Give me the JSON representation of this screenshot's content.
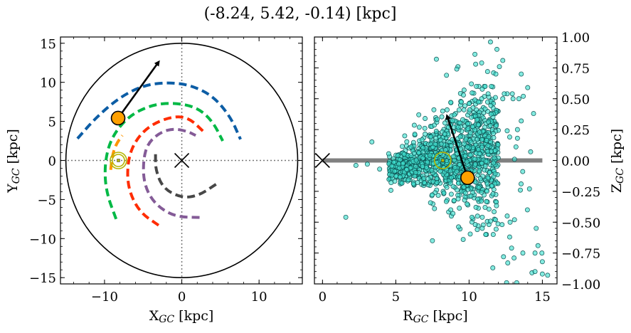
{
  "title": "(-8.24, 5.42, -0.14) [kpc]",
  "colors": {
    "orbit_marker": "#ffa000",
    "sun_marker": "#b5b500",
    "scatter_fill": "#40e0d0",
    "scatter_edge": "#0b4f4f",
    "galactic_plane": "#808080"
  },
  "chart_data": [
    {
      "type": "line",
      "panel": "left",
      "xlabel": "X",
      "xlabel_sub": "GC",
      "xlabel_unit": " [kpc]",
      "ylabel": "Y",
      "ylabel_sub": "GC",
      "ylabel_unit": " [kpc]",
      "xlim": [
        -15.7,
        15.6
      ],
      "ylim": [
        -15.8,
        15.8
      ],
      "xticks": [
        -10,
        0,
        10
      ],
      "xtick_labels": [
        "−10",
        "0",
        "10"
      ],
      "yticks": [
        -15,
        -10,
        -5,
        0,
        5,
        10,
        15
      ],
      "ytick_labels": [
        "−15",
        "−10",
        "−5",
        "0",
        "5",
        "10",
        "15"
      ],
      "grid": false,
      "boundary_circle_radius": 15,
      "crosshair": {
        "x": 0,
        "y": 0,
        "style": "dotted"
      },
      "galactic_center": {
        "x": 0,
        "y": 0,
        "marker": "x"
      },
      "sun": {
        "x": -8.2,
        "y": 0
      },
      "object": {
        "x": -8.24,
        "y": 5.42
      },
      "velocity_arrow": {
        "from": [
          -8.24,
          5.42
        ],
        "to": [
          -3.0,
          12.6
        ]
      },
      "series": [
        {
          "color": "#0c5da5",
          "points": [
            [
              -13.5,
              2.8
            ],
            [
              -11,
              5.6
            ],
            [
              -8,
              8.1
            ],
            [
              -5,
              9.6
            ],
            [
              -2,
              10.0
            ],
            [
              1,
              9.7
            ],
            [
              4,
              8.3
            ],
            [
              6.3,
              5.6
            ],
            [
              7.6,
              2.7
            ]
          ]
        },
        {
          "color": "#00b945",
          "points": [
            [
              -8.5,
              -7.5
            ],
            [
              -9.8,
              -4
            ],
            [
              -10,
              -0.5
            ],
            [
              -9.2,
              2.8
            ],
            [
              -7,
              5.6
            ],
            [
              -4,
              7.1
            ],
            [
              -1,
              7.4
            ],
            [
              2,
              6.8
            ],
            [
              4,
              5
            ],
            [
              5.3,
              2.5
            ]
          ]
        },
        {
          "color": "#ff9500",
          "points": [
            [
              -9.2,
              -1.2
            ],
            [
              -9,
              0.6
            ],
            [
              -8.5,
              2.1
            ],
            [
              -7.7,
              3.2
            ]
          ]
        },
        {
          "color": "#ff2c00",
          "points": [
            [
              -3,
              -8.3
            ],
            [
              -5.5,
              -6.6
            ],
            [
              -7,
              -3.5
            ],
            [
              -7,
              0
            ],
            [
              -6,
              2.6
            ],
            [
              -4,
              4.6
            ],
            [
              -1,
              5.7
            ],
            [
              1,
              5.4
            ],
            [
              2.8,
              3.7
            ]
          ]
        },
        {
          "color": "#845b97",
          "points": [
            [
              2.3,
              -7.3
            ],
            [
              -1,
              -7.2
            ],
            [
              -3.6,
              -5.5
            ],
            [
              -4.9,
              -3
            ],
            [
              -5,
              0
            ],
            [
              -4.4,
              2.2
            ],
            [
              -2.8,
              3.6
            ],
            [
              -1,
              4.1
            ],
            [
              0.8,
              3.7
            ],
            [
              1.8,
              3.2
            ]
          ]
        },
        {
          "color": "#474747",
          "points": [
            [
              -3.4,
              0.8
            ],
            [
              -3.4,
              -1.2
            ],
            [
              -2.4,
              -3.6
            ],
            [
              0,
              -4.8
            ],
            [
              2.2,
              -4.5
            ],
            [
              4.5,
              -3
            ]
          ]
        }
      ]
    },
    {
      "type": "scatter",
      "panel": "right",
      "xlabel": "R",
      "xlabel_sub": "GC",
      "xlabel_unit": " [kpc]",
      "ylabel": "Z",
      "ylabel_sub": "GC",
      "ylabel_unit": " [kpc]",
      "ylabel_position": "right",
      "xlim": [
        -0.55,
        16.0
      ],
      "ylim": [
        -1.0,
        1.0
      ],
      "xticks": [
        0,
        5,
        10,
        15
      ],
      "xtick_labels": [
        "0",
        "5",
        "10",
        "15"
      ],
      "yticks": [
        -1.0,
        -0.75,
        -0.5,
        -0.25,
        0,
        0.25,
        0.5,
        0.75,
        1.0
      ],
      "ytick_labels": [
        "−1.00",
        "−0.75",
        "−0.50",
        "−0.25",
        "0.00",
        "0.25",
        "0.50",
        "0.75",
        "1.00"
      ],
      "grid": false,
      "galactic_plane": {
        "from": 0,
        "to": 15,
        "z": 0
      },
      "galactic_center": {
        "x": 0,
        "y": 0,
        "marker": "x"
      },
      "sun": {
        "x": 8.2,
        "y": 0
      },
      "object": {
        "x": 9.9,
        "y": -0.14
      },
      "velocity_arrow": {
        "from": [
          9.9,
          -0.14
        ],
        "to": [
          8.5,
          0.36
        ]
      },
      "core_cloud": {
        "r_range": [
          4.5,
          12
        ],
        "z_spread_grows_with_r": true
      },
      "points": [
        [
          11.46,
          0.96
        ],
        [
          11.9,
          0.9
        ],
        [
          10.4,
          0.86
        ],
        [
          7.77,
          0.82
        ],
        [
          12.3,
          0.81
        ],
        [
          10.45,
          0.78
        ],
        [
          10.86,
          0.79
        ],
        [
          9.24,
          0.76
        ],
        [
          9.16,
          0.74
        ],
        [
          8.46,
          0.69
        ],
        [
          13.56,
          0.7
        ],
        [
          11.26,
          0.72
        ],
        [
          11.67,
          0.71
        ],
        [
          11.83,
          0.7
        ],
        [
          12.07,
          0.76
        ],
        [
          10.16,
          0.62
        ],
        [
          10.5,
          0.6
        ],
        [
          14.0,
          0.59
        ],
        [
          9.66,
          0.57
        ],
        [
          14.4,
          0.38
        ],
        [
          14.2,
          0.07
        ],
        [
          3.37,
          0.15
        ],
        [
          2.28,
          -0.04
        ],
        [
          3.06,
          -0.03
        ],
        [
          3.9,
          -0.07
        ],
        [
          1.59,
          -0.46
        ],
        [
          4.68,
          -0.18
        ],
        [
          7.64,
          -0.39
        ],
        [
          7.5,
          -0.65
        ],
        [
          9.6,
          -0.64
        ],
        [
          8.75,
          -0.4
        ],
        [
          8.9,
          -0.43
        ],
        [
          11.62,
          -0.87
        ],
        [
          11.8,
          -0.48
        ],
        [
          12.25,
          -0.52
        ],
        [
          12.6,
          -0.45
        ],
        [
          13.1,
          -0.48
        ],
        [
          12.8,
          -0.5
        ],
        [
          12.77,
          -0.62
        ],
        [
          12.9,
          -0.71
        ],
        [
          12.35,
          -0.78
        ],
        [
          12.64,
          -0.83
        ],
        [
          13.07,
          -0.79
        ],
        [
          13.67,
          -0.75
        ],
        [
          14.58,
          -0.55
        ],
        [
          14.7,
          -0.69
        ],
        [
          14.5,
          -0.75
        ],
        [
          14.97,
          -0.75
        ],
        [
          15.0,
          -0.82
        ],
        [
          14.29,
          -0.91
        ],
        [
          14.5,
          -0.9
        ],
        [
          15.0,
          -0.92
        ],
        [
          15.36,
          -0.93
        ],
        [
          12.56,
          -0.99
        ],
        [
          13.25,
          -0.99
        ],
        [
          13.98,
          -0.4
        ],
        [
          14.12,
          -0.23
        ],
        [
          13.66,
          -0.09
        ],
        [
          13.55,
          -0.19
        ],
        [
          13.5,
          -0.24
        ],
        [
          10.9,
          -0.46
        ],
        [
          10.9,
          -0.55
        ],
        [
          10.56,
          -0.56
        ],
        [
          10.2,
          -0.46
        ],
        [
          8.75,
          0.47
        ],
        [
          6.57,
          0.37
        ],
        [
          7.0,
          0.34
        ],
        [
          7.6,
          0.41
        ],
        [
          8.2,
          0.4
        ],
        [
          8.5,
          0.41
        ],
        [
          13.56,
          0.32
        ],
        [
          13.3,
          0.25
        ],
        [
          13.3,
          0.18
        ],
        [
          13.1,
          0.01
        ],
        [
          13.2,
          0.11
        ],
        [
          12.3,
          0.5
        ],
        [
          13.0,
          0.5
        ],
        [
          13.4,
          0.5
        ],
        [
          13.7,
          0.52
        ],
        [
          12.95,
          0.54
        ],
        [
          12.6,
          0.54
        ],
        [
          12.4,
          0.54
        ],
        [
          11.8,
          0.51
        ],
        [
          11.3,
          0.54
        ],
        [
          10.86,
          0.5
        ],
        [
          10.0,
          0.46
        ],
        [
          10.4,
          0.49
        ],
        [
          9.65,
          0.41
        ],
        [
          10.05,
          0.41
        ],
        [
          10.5,
          0.41
        ],
        [
          12.6,
          0.24
        ],
        [
          12.77,
          0.19
        ]
      ]
    }
  ]
}
